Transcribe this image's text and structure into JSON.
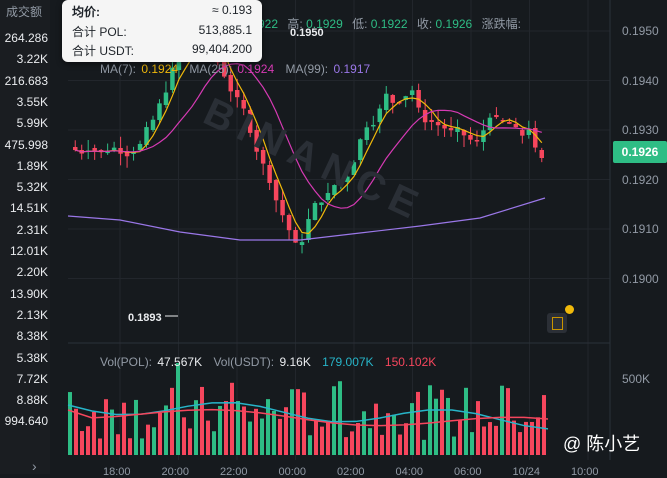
{
  "left_column": {
    "header": "成交额",
    "values": [
      "264.286",
      "3.22K",
      "216.683",
      "3.55K",
      "5.99K",
      "475.998",
      "1.89K",
      "5.32K",
      "14.51K",
      "2.31K",
      "12.01K",
      "2.20K",
      "13.90K",
      "2.13K",
      "8.38K",
      "5.38K",
      "7.72K",
      "8.88K",
      "994.640"
    ],
    "collapse_icon": "chevron-right-icon"
  },
  "tooltip": {
    "avg_label": "均价:",
    "avg_value": "≈ 0.193",
    "total_pol_label": "合计 POL:",
    "total_pol_value": "513,885.1",
    "total_usdt_label": "合计 USDT:",
    "total_usdt_value": "99,404.200"
  },
  "ohlc": {
    "open_value": "922",
    "high_label": "高:",
    "high_value": "0.1929",
    "low_label": "低:",
    "low_value": "0.1922",
    "close_label": "收:",
    "close_value": "0.1926",
    "change_label": "涨跌幅:"
  },
  "ma": {
    "ma7_label": "MA(7):",
    "ma7_value": "0.1924",
    "ma25_label": "MA(25):",
    "ma25_value": "0.1924",
    "ma99_label": "MA(99):",
    "ma99_value": "0.1917"
  },
  "price_axis": [
    "0.1950",
    "0.1940",
    "0.1930",
    "0.1920",
    "0.1910",
    "0.1900"
  ],
  "current_price": "0.1926",
  "annotations": {
    "high_marker": "0.1950",
    "low_marker": "0.1893"
  },
  "watermark": "BINANCE",
  "volume": {
    "vol_pol_label": "Vol(POL):",
    "vol_pol_value": "47.567K",
    "vol_usdt_label": "Vol(USDT):",
    "vol_usdt_value": "9.16K",
    "ma1_value": "179.007K",
    "ma2_value": "150.102K",
    "axis_label": "500K"
  },
  "time_axis": [
    "18:00",
    "20:00",
    "22:00",
    "00:00",
    "02:00",
    "04:00",
    "06:00",
    "10/24",
    "10:00"
  ],
  "credit": "@ 陈小艺",
  "colors": {
    "up": "#2ebd85",
    "down": "#f6465d",
    "ma7": "#f0b90b",
    "ma25": "#d63ab4",
    "ma99": "#9a77e8",
    "background": "#161a1e"
  }
}
